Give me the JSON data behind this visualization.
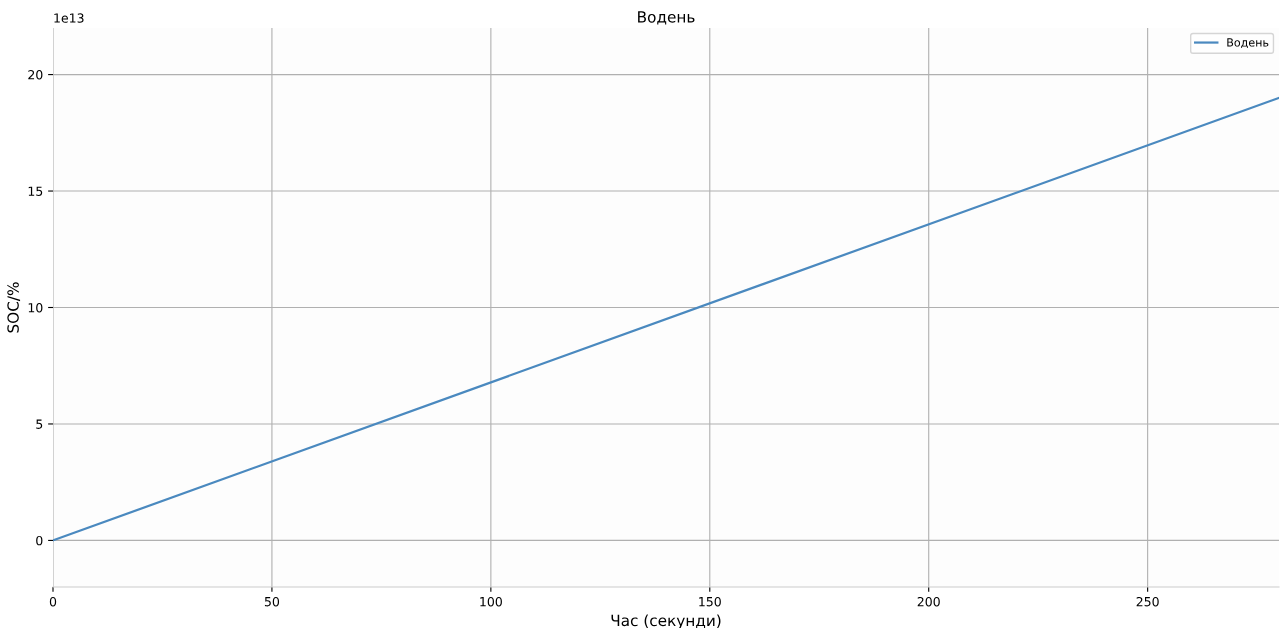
{
  "chart_data": {
    "type": "line",
    "title": "Водень",
    "xlabel": "Час (секунди)",
    "ylabel": "SOC/%",
    "x": [
      0,
      280
    ],
    "series": [
      {
        "name": "Водень",
        "color": "#4a89bf",
        "values": [
          0,
          19
        ]
      }
    ],
    "xlim": [
      0,
      280
    ],
    "xticks": [
      0,
      50,
      100,
      150,
      200,
      250
    ],
    "ylim": [
      -2,
      22
    ],
    "yticks": [
      0,
      5,
      10,
      15,
      20
    ],
    "annotations": [
      "1e13"
    ],
    "grid": true,
    "legend": "top right",
    "line_style": "solid",
    "marker": "none"
  }
}
